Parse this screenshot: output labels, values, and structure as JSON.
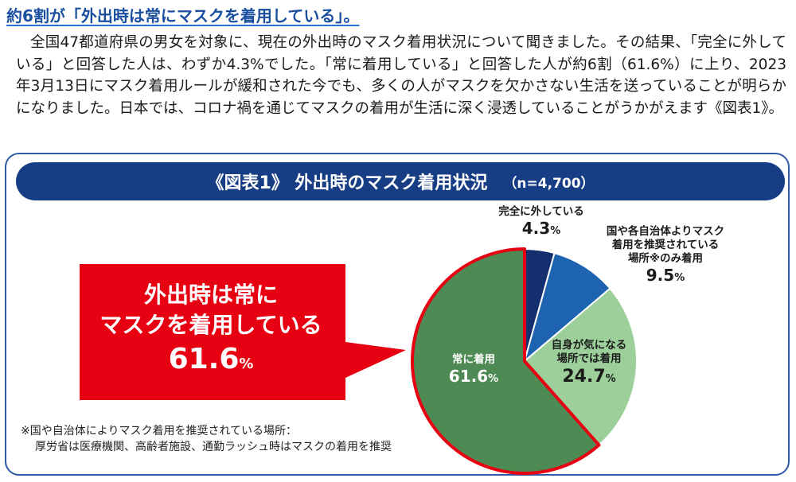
{
  "headline": "約6割が「外出時は常にマスクを着用している」。",
  "body_text": "全国47都道府県の男女を対象に、現在の外出時のマスク着用状況について聞きました。その結果、「完全に外している」と回答した人は、わずか4.3%でした。「常に着用している」と回答した人が約6割（61.6%）に上り、2023年3月13日にマスク着用ルールが緩和された今でも、多くの人がマスクを欠かさない生活を送っていることが明らかになりました。日本では、コロナ禍を通じてマスクの着用が生活に深く浸透していることがうかがえます《図表1》。",
  "figure": {
    "title": "《図表1》 外出時のマスク着用状況",
    "sample": "（n=4,700）"
  },
  "callout": {
    "line1": "外出時は常に",
    "line2": "マスクを着用している",
    "value": "61.6",
    "unit": "%"
  },
  "footnote": {
    "line1": "※国や自治体によりマスク着用を推奨されている場所：",
    "line2": "厚労省は医療機関、高齢者施設、通勤ラッシュ時はマスクの着用を推奨"
  },
  "colors": {
    "navy": "#173e84",
    "red": "#e60012",
    "green_dark": "#4e8a53",
    "green_light": "#9ccf9a",
    "blue": "#1e63b0",
    "navy_slice": "#142f6e"
  },
  "chart_data": {
    "type": "pie",
    "title": "《図表1》 外出時のマスク着用状況",
    "n": "4,700",
    "unit": "%",
    "slices": [
      {
        "label": "完全に外している",
        "value": 4.3,
        "value_text": "4.3",
        "color": "#142f6e"
      },
      {
        "label": "国や各自治体よりマスク着用を推奨されている場所※のみ着用",
        "label_lines": [
          "国や各自治体よりマスク",
          "着用を推奨されている",
          "場所※のみ着用"
        ],
        "value": 9.5,
        "value_text": "9.5",
        "color": "#1e63b0"
      },
      {
        "label": "自身が気になる場所では着用",
        "label_lines": [
          "自身が気になる",
          "場所では着用"
        ],
        "value": 24.7,
        "value_text": "24.7",
        "color": "#9ccf9a"
      },
      {
        "label": "常に着用",
        "value": 61.6,
        "value_text": "61.6",
        "color": "#4e8a53",
        "highlighted": true
      }
    ]
  }
}
